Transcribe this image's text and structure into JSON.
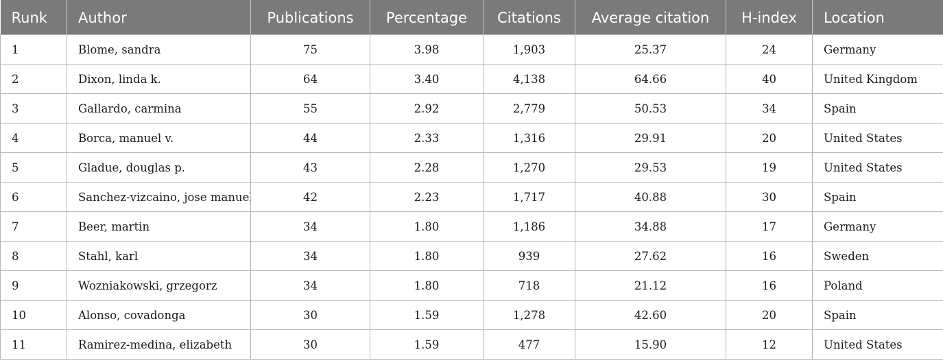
{
  "table": {
    "headers": [
      "Runk",
      "Author",
      "Publications",
      "Percentage",
      "Citations",
      "Average citation",
      "H-index",
      "Location"
    ],
    "rows": [
      [
        "1",
        "Blome, sandra",
        "75",
        "3.98",
        "1,903",
        "25.37",
        "24",
        "Germany"
      ],
      [
        "2",
        "Dixon, linda k.",
        "64",
        "3.40",
        "4,138",
        "64.66",
        "40",
        "United Kingdom"
      ],
      [
        "3",
        "Gallardo, carmina",
        "55",
        "2.92",
        "2,779",
        "50.53",
        "34",
        "Spain"
      ],
      [
        "4",
        "Borca, manuel v.",
        "44",
        "2.33",
        "1,316",
        "29.91",
        "20",
        "United States"
      ],
      [
        "5",
        "Gladue, douglas p.",
        "43",
        "2.28",
        "1,270",
        "29.53",
        "19",
        "United States"
      ],
      [
        "6",
        "Sanchez-vizcaino, jose manuel",
        "42",
        "2.23",
        "1,717",
        "40.88",
        "30",
        "Spain"
      ],
      [
        "7",
        "Beer, martin",
        "34",
        "1.80",
        "1,186",
        "34.88",
        "17",
        "Germany"
      ],
      [
        "8",
        "Stahl, karl",
        "34",
        "1.80",
        "939",
        "27.62",
        "16",
        "Sweden"
      ],
      [
        "9",
        "Wozniakowski, grzegorz",
        "34",
        "1.80",
        "718",
        "21.12",
        "16",
        "Poland"
      ],
      [
        "10",
        "Alonso, covadonga",
        "30",
        "1.59",
        "1,278",
        "42.60",
        "20",
        "Spain"
      ],
      [
        "11",
        "Ramirez-medina, elizabeth",
        "30",
        "1.59",
        "477",
        "15.90",
        "12",
        "United States"
      ]
    ]
  },
  "colors": {
    "header_bg": "#7a7a7a",
    "header_text": "#ffffff",
    "grid": "#b3b3b3"
  }
}
